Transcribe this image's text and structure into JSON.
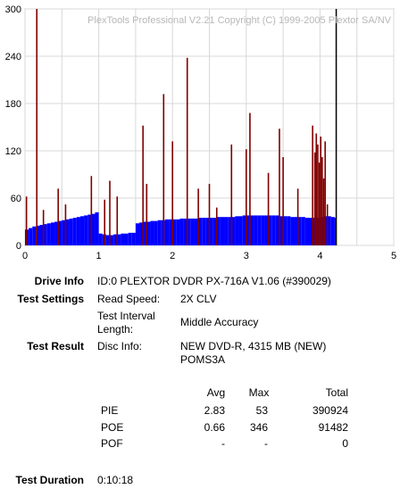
{
  "watermark": "PlexTools Professional V2.21 Copyright (C) 1999-2005 Plextor SA/NV",
  "chart_data": {
    "type": "bar",
    "xlabel": "",
    "ylabel": "",
    "xlim": [
      0,
      5
    ],
    "ylim": [
      0,
      300
    ],
    "x_ticks": [
      "0",
      "1",
      "2",
      "3",
      "4",
      "5"
    ],
    "y_ticks": [
      "0",
      "60",
      "120",
      "180",
      "240",
      "300"
    ],
    "grid": true,
    "end_marker_x": 4.22,
    "series": [
      {
        "name": "",
        "color": "#0000ff",
        "x": [
          0.0,
          0.05,
          0.1,
          0.15,
          0.2,
          0.25,
          0.3,
          0.35,
          0.4,
          0.45,
          0.5,
          0.55,
          0.6,
          0.65,
          0.7,
          0.75,
          0.8,
          0.85,
          0.9,
          0.95,
          1.0,
          1.05,
          1.1,
          1.15,
          1.2,
          1.25,
          1.3,
          1.35,
          1.4,
          1.45,
          1.5,
          1.55,
          1.6,
          1.65,
          1.7,
          1.75,
          1.8,
          1.85,
          1.9,
          1.95,
          2.0,
          2.05,
          2.1,
          2.15,
          2.2,
          2.25,
          2.3,
          2.35,
          2.4,
          2.45,
          2.5,
          2.55,
          2.6,
          2.65,
          2.7,
          2.75,
          2.8,
          2.85,
          2.9,
          2.95,
          3.0,
          3.05,
          3.1,
          3.15,
          3.2,
          3.25,
          3.3,
          3.35,
          3.4,
          3.45,
          3.5,
          3.55,
          3.6,
          3.65,
          3.7,
          3.75,
          3.8,
          3.85,
          3.9,
          3.95,
          4.0,
          4.05,
          4.1,
          4.15,
          4.2
        ],
        "values": [
          20,
          22,
          24,
          25,
          26,
          27,
          28,
          29,
          30,
          31,
          32,
          33,
          34,
          35,
          36,
          37,
          38,
          39,
          40,
          42,
          15,
          14,
          13,
          13,
          14,
          14,
          15,
          15,
          16,
          16,
          28,
          29,
          30,
          30,
          31,
          31,
          32,
          32,
          33,
          33,
          33,
          33,
          34,
          34,
          34,
          34,
          34,
          35,
          35,
          35,
          35,
          35,
          36,
          36,
          36,
          36,
          36,
          37,
          37,
          38,
          38,
          38,
          38,
          38,
          38,
          38,
          38,
          38,
          38,
          37,
          37,
          37,
          36,
          36,
          36,
          36,
          35,
          35,
          35,
          35,
          36,
          37,
          37,
          36,
          35
        ]
      },
      {
        "name": "",
        "color": "#800000",
        "x": [
          0.02,
          0.16,
          0.25,
          0.45,
          0.55,
          0.9,
          1.08,
          1.15,
          1.25,
          1.6,
          1.65,
          1.88,
          2.0,
          2.2,
          2.35,
          2.5,
          2.6,
          2.8,
          3.0,
          3.05,
          3.3,
          3.45,
          3.5,
          3.7,
          3.9,
          3.93,
          3.95,
          3.97,
          3.99,
          4.01,
          4.03,
          4.05,
          4.07,
          4.1
        ],
        "values": [
          62,
          300,
          45,
          72,
          52,
          88,
          58,
          82,
          62,
          152,
          78,
          192,
          132,
          238,
          72,
          78,
          48,
          128,
          122,
          168,
          92,
          148,
          112,
          72,
          152,
          118,
          142,
          128,
          105,
          138,
          112,
          85,
          132,
          52
        ]
      }
    ]
  },
  "drive_info": {
    "label": "Drive Info",
    "value": "ID:0 PLEXTOR DVDR PX-716A V1.06 (#390029)"
  },
  "test_settings": {
    "label": "Test Settings",
    "read_speed_label": "Read Speed:",
    "read_speed_value": "2X CLV",
    "interval_label_1": "Test Interval",
    "interval_label_2": "Length:",
    "interval_value": "Middle Accuracy"
  },
  "test_result": {
    "label": "Test Result",
    "disc_info_label": "Disc Info:",
    "disc_info_line1": "NEW DVD-R, 4315 MB (NEW)",
    "disc_info_line2": "POMS3A"
  },
  "results_table": {
    "headers": [
      "",
      "Avg",
      "Max",
      "Total"
    ],
    "rows": [
      [
        "PIE",
        "2.83",
        "53",
        "390924"
      ],
      [
        "POE",
        "0.66",
        "346",
        "91482"
      ],
      [
        "POF",
        "-",
        "-",
        "0"
      ]
    ]
  },
  "test_duration": {
    "label": "Test Duration",
    "value": "0:10:18"
  }
}
